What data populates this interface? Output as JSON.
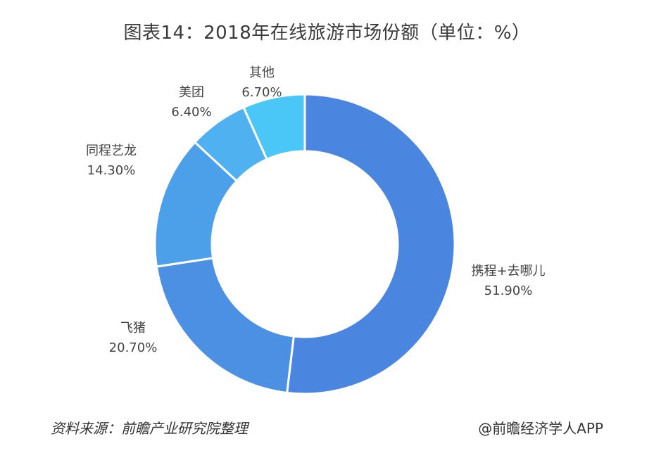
{
  "chart_data": {
    "type": "pie",
    "title": "图表14：2018年在线旅游市场份额（单位：%）",
    "series": [
      {
        "labels": [
          "携程+去哪儿",
          "飞猪",
          "同程艺龙",
          "美团",
          "其他"
        ],
        "values": [
          51.9,
          20.7,
          14.3,
          6.4,
          6.7
        ],
        "value_labels": [
          "51.90%",
          "20.70%",
          "14.30%",
          "6.40%",
          "6.70%"
        ],
        "colors": [
          "#4a86e0",
          "#4c90e4",
          "#4ca0ea",
          "#4fb1ef",
          "#4ac6f7"
        ]
      }
    ],
    "donut": true
  },
  "footer": {
    "source": "资料来源：前瞻产业研究院整理",
    "credit": "@前瞻经济学人APP"
  }
}
